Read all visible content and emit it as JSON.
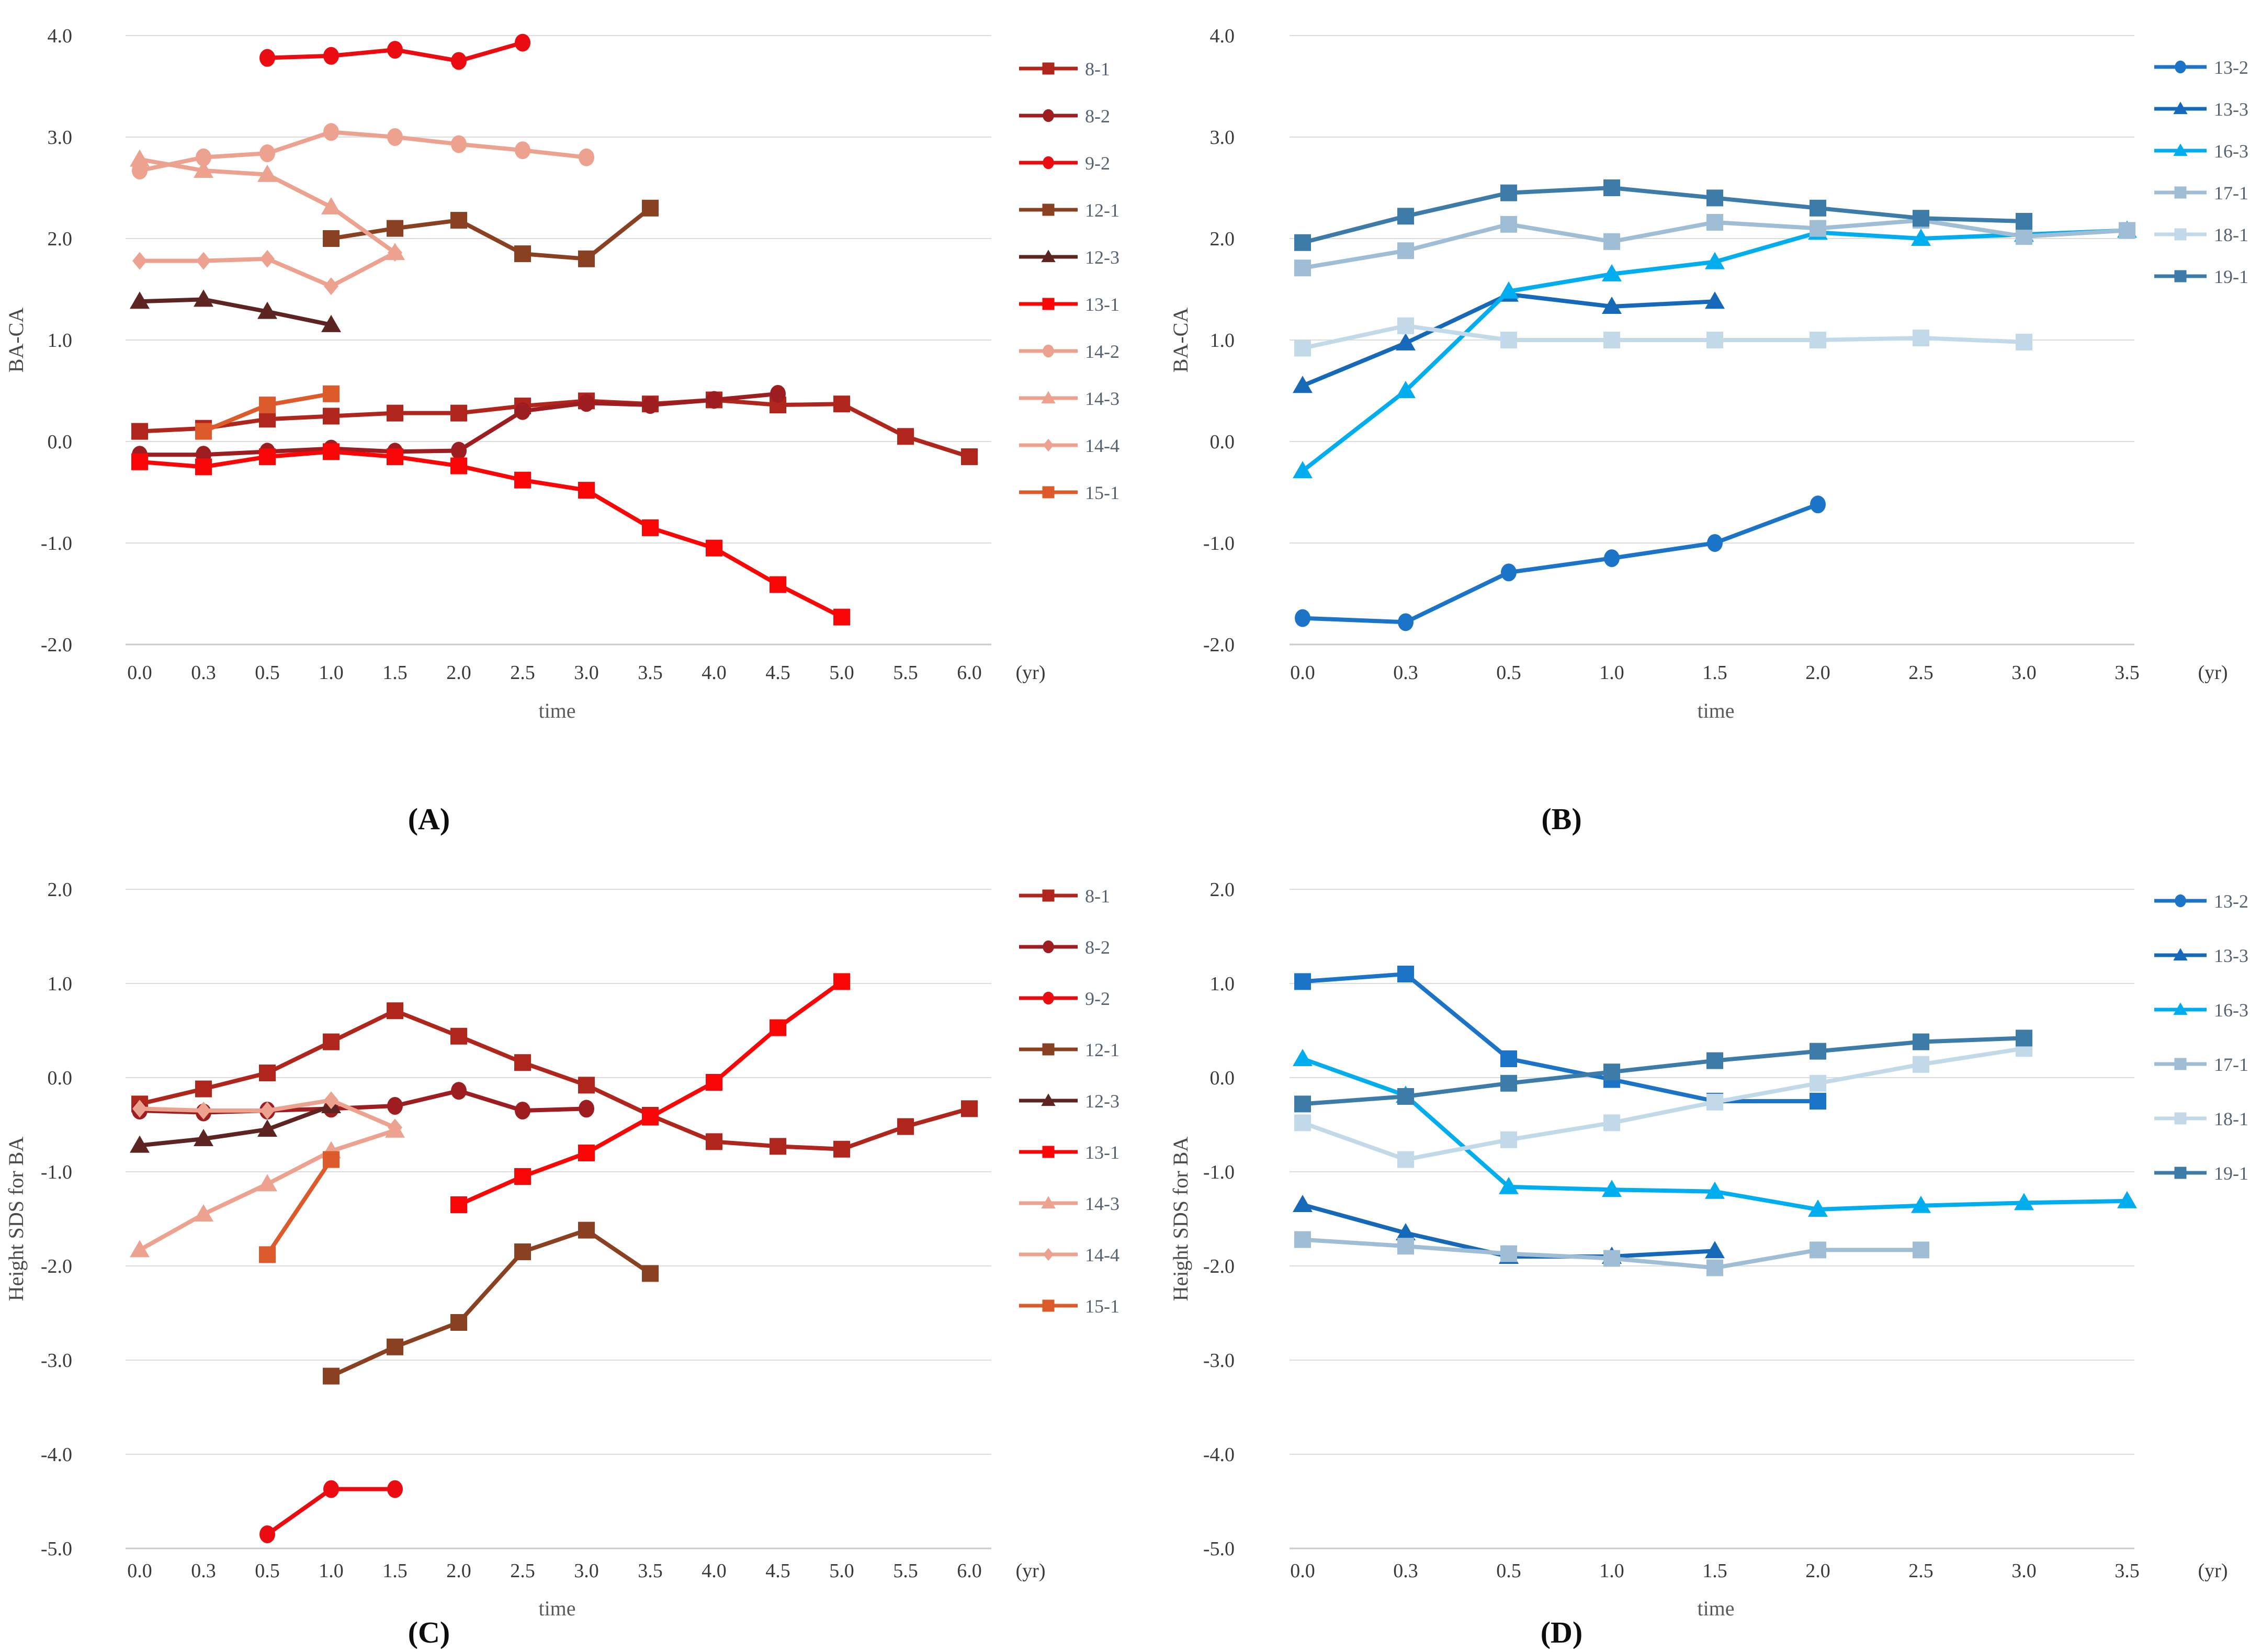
{
  "figure": {
    "background": "#ffffff",
    "gridline_color": "#dcdcdc",
    "axisline_color": "#c9c9c9",
    "panel_letters": [
      "(A)",
      "(B)",
      "(C)",
      "(D)"
    ]
  },
  "chart_data": [
    {
      "panel": "A",
      "panel_label": "(A)",
      "type": "line",
      "xlabel": "time",
      "x_unit": "(yr)",
      "ylabel": "BA-CA",
      "ylim": [
        -2.0,
        4.0
      ],
      "grid": true,
      "legend_position": "right",
      "yticks": [
        "4.0",
        "3.0",
        "2.0",
        "1.0",
        "0.0",
        "-1.0",
        "-2.0"
      ],
      "categories": [
        "0.0",
        "0.3",
        "0.5",
        "1.0",
        "1.5",
        "2.0",
        "2.5",
        "3.0",
        "3.5",
        "4.0",
        "4.5",
        "5.0",
        "5.5",
        "6.0"
      ],
      "series": [
        {
          "name": "8-1",
          "color": "#b1261c",
          "marker": "square",
          "start": 0,
          "values": [
            0.1,
            0.13,
            0.22,
            0.25,
            0.28,
            0.28,
            0.35,
            0.4,
            0.37,
            0.41,
            0.36,
            0.37,
            0.05,
            -0.15
          ]
        },
        {
          "name": "8-2",
          "color": "#9e1d20",
          "marker": "circle",
          "start": 0,
          "values": [
            -0.13,
            -0.13,
            -0.1,
            -0.07,
            -0.1,
            -0.09,
            0.3,
            0.38,
            0.36,
            0.41,
            0.47
          ]
        },
        {
          "name": "9-2",
          "color": "#ea0c10",
          "marker": "circle",
          "start": 2,
          "values": [
            3.78,
            3.8,
            3.86,
            3.75,
            3.93
          ]
        },
        {
          "name": "12-1",
          "color": "#8a4122",
          "marker": "square",
          "start": 3,
          "values": [
            2.0,
            2.1,
            2.18,
            1.85,
            1.8,
            2.3
          ]
        },
        {
          "name": "12-3",
          "color": "#5d2422",
          "marker": "triangle",
          "start": 0,
          "values": [
            1.38,
            1.4,
            1.28,
            1.15
          ]
        },
        {
          "name": "13-1",
          "color": "#fb0606",
          "marker": "square",
          "start": 0,
          "values": [
            -0.2,
            -0.25,
            -0.15,
            -0.1,
            -0.15,
            -0.24,
            -0.38,
            -0.48,
            -0.85,
            -1.05,
            -1.41,
            -1.73
          ]
        },
        {
          "name": "14-2",
          "color": "#eda28f",
          "marker": "circle",
          "start": 0,
          "values": [
            2.67,
            2.8,
            2.84,
            3.05,
            3.0,
            2.93,
            2.87,
            2.8
          ]
        },
        {
          "name": "14-3",
          "color": "#eda28f",
          "marker": "triangle",
          "start": 0,
          "values": [
            2.78,
            2.67,
            2.63,
            2.31,
            1.86
          ]
        },
        {
          "name": "14-4",
          "color": "#eda28f",
          "marker": "diamond",
          "start": 0,
          "values": [
            1.78,
            1.78,
            1.8,
            1.53,
            1.86
          ]
        },
        {
          "name": "15-1",
          "color": "#dd5b2b",
          "marker": "square",
          "start": 1,
          "values": [
            0.1,
            0.36,
            0.47
          ]
        }
      ]
    },
    {
      "panel": "B",
      "panel_label": "(B)",
      "type": "line",
      "xlabel": "time",
      "x_unit": "(yr)",
      "ylabel": "BA-CA",
      "ylim": [
        -2.0,
        4.0
      ],
      "grid": true,
      "legend_position": "right",
      "yticks": [
        "4.0",
        "3.0",
        "2.0",
        "1.0",
        "0.0",
        "-1.0",
        "-2.0"
      ],
      "categories": [
        "0.0",
        "0.3",
        "0.5",
        "1.0",
        "1.5",
        "2.0",
        "2.5",
        "3.0",
        "3.5"
      ],
      "series": [
        {
          "name": "13-2",
          "color": "#1b74c8",
          "marker": "circle",
          "start": 0,
          "values": [
            -1.74,
            -1.78,
            -1.29,
            -1.15,
            -1.0,
            -0.62
          ]
        },
        {
          "name": "13-3",
          "color": "#1668b8",
          "marker": "triangle",
          "start": 0,
          "values": [
            0.55,
            0.97,
            1.45,
            1.33,
            1.38
          ]
        },
        {
          "name": "16-3",
          "color": "#00aeef",
          "marker": "triangle",
          "start": 0,
          "values": [
            -0.29,
            0.5,
            1.48,
            1.65,
            1.77,
            2.06,
            2.0,
            2.04,
            2.08
          ]
        },
        {
          "name": "17-1",
          "color": "#9fbdd4",
          "marker": "square",
          "start": 0,
          "values": [
            1.71,
            1.88,
            2.14,
            1.97,
            2.16,
            2.1,
            2.18,
            2.02,
            2.08
          ]
        },
        {
          "name": "18-1",
          "color": "#c2d9ea",
          "marker": "square",
          "start": 0,
          "values": [
            0.92,
            1.14,
            1.0,
            1.0,
            1.0,
            1.0,
            1.02,
            0.98
          ]
        },
        {
          "name": "19-1",
          "color": "#3d7ca8",
          "marker": "square",
          "start": 0,
          "values": [
            1.96,
            2.22,
            2.45,
            2.5,
            2.4,
            2.3,
            2.2,
            2.17
          ]
        }
      ]
    },
    {
      "panel": "C",
      "panel_label": "(C)",
      "type": "line",
      "xlabel": "time",
      "x_unit": "(yr)",
      "ylabel": "Height SDS for BA",
      "ylim": [
        -5.0,
        2.0
      ],
      "grid": true,
      "legend_position": "right",
      "yticks": [
        "2.0",
        "1.0",
        "0.0",
        "-1.0",
        "-2.0",
        "-3.0",
        "-4.0",
        "-5.0"
      ],
      "categories": [
        "0.0",
        "0.3",
        "0.5",
        "1.0",
        "1.5",
        "2.0",
        "2.5",
        "3.0",
        "3.5",
        "4.0",
        "4.5",
        "5.0",
        "5.5",
        "6.0"
      ],
      "series": [
        {
          "name": "8-1",
          "color": "#b1261c",
          "marker": "square",
          "start": 0,
          "values": [
            -0.28,
            -0.12,
            0.05,
            0.38,
            0.71,
            0.44,
            0.16,
            -0.08,
            -0.4,
            -0.68,
            -0.73,
            -0.76,
            -0.52,
            -0.33
          ]
        },
        {
          "name": "8-2",
          "color": "#9e1d20",
          "marker": "circle",
          "start": 0,
          "values": [
            -0.35,
            -0.37,
            -0.35,
            -0.33,
            -0.3,
            -0.14,
            -0.35,
            -0.33
          ]
        },
        {
          "name": "9-2",
          "color": "#ea0c10",
          "marker": "circle",
          "start": 2,
          "values": [
            -4.85,
            -4.37,
            -4.37
          ]
        },
        {
          "name": "12-1",
          "color": "#8a4122",
          "marker": "square",
          "start": 3,
          "values": [
            -3.17,
            -2.86,
            -2.6,
            -1.85,
            -1.62,
            -2.08
          ]
        },
        {
          "name": "12-3",
          "color": "#5d2422",
          "marker": "triangle",
          "start": 0,
          "values": [
            -0.72,
            -0.65,
            -0.55,
            -0.3
          ]
        },
        {
          "name": "13-1",
          "color": "#fb0606",
          "marker": "square",
          "start": 5,
          "values": [
            -1.35,
            -1.05,
            -0.8,
            -0.42,
            -0.05,
            0.53,
            1.02
          ]
        },
        {
          "name": "14-3",
          "color": "#eda28f",
          "marker": "triangle",
          "start": 0,
          "values": [
            -1.83,
            -1.45,
            -1.13,
            -0.78,
            -0.56
          ]
        },
        {
          "name": "14-4",
          "color": "#eda28f",
          "marker": "diamond",
          "start": 0,
          "values": [
            -0.33,
            -0.35,
            -0.35,
            -0.24,
            -0.53
          ]
        },
        {
          "name": "15-1",
          "color": "#dd5b2b",
          "marker": "square",
          "start": 2,
          "values": [
            -1.88,
            -0.87
          ]
        }
      ]
    },
    {
      "panel": "D",
      "panel_label": "(D)",
      "type": "line",
      "xlabel": "time",
      "x_unit": "(yr)",
      "ylabel": "Height SDS for BA",
      "ylim": [
        -5.0,
        2.0
      ],
      "grid": true,
      "legend_position": "right",
      "yticks": [
        "2.0",
        "1.0",
        "0.0",
        "-1.0",
        "-2.0",
        "-3.0",
        "-4.0",
        "-5.0"
      ],
      "categories": [
        "0.0",
        "0.3",
        "0.5",
        "1.0",
        "1.5",
        "2.0",
        "2.5",
        "3.0",
        "3.5"
      ],
      "series": [
        {
          "name": "13-2",
          "color": "#1b74c8",
          "marker": "square",
          "legend_marker": "circle",
          "start": 0,
          "values": [
            1.02,
            1.1,
            0.2,
            -0.02,
            -0.25,
            -0.25
          ]
        },
        {
          "name": "13-3",
          "color": "#1668b8",
          "marker": "triangle",
          "start": 0,
          "values": [
            -1.35,
            -1.65,
            -1.9,
            -1.9,
            -1.84
          ]
        },
        {
          "name": "16-3",
          "color": "#00aeef",
          "marker": "triangle",
          "start": 0,
          "values": [
            0.2,
            -0.19,
            -1.16,
            -1.19,
            -1.21,
            -1.4,
            -1.36,
            -1.33,
            -1.31
          ]
        },
        {
          "name": "17-1",
          "color": "#9fbdd4",
          "marker": "square",
          "start": 0,
          "values": [
            -1.72,
            -1.79,
            -1.87,
            -1.92,
            -2.02,
            -1.83,
            -1.83
          ]
        },
        {
          "name": "18-1",
          "color": "#c2d9ea",
          "marker": "square",
          "start": 0,
          "values": [
            -0.48,
            -0.87,
            -0.66,
            -0.48,
            -0.26,
            -0.06,
            0.14,
            0.31
          ]
        },
        {
          "name": "19-1",
          "color": "#3d7ca8",
          "marker": "square",
          "start": 0,
          "values": [
            -0.28,
            -0.2,
            -0.06,
            0.06,
            0.18,
            0.28,
            0.38,
            0.42
          ]
        }
      ]
    }
  ]
}
